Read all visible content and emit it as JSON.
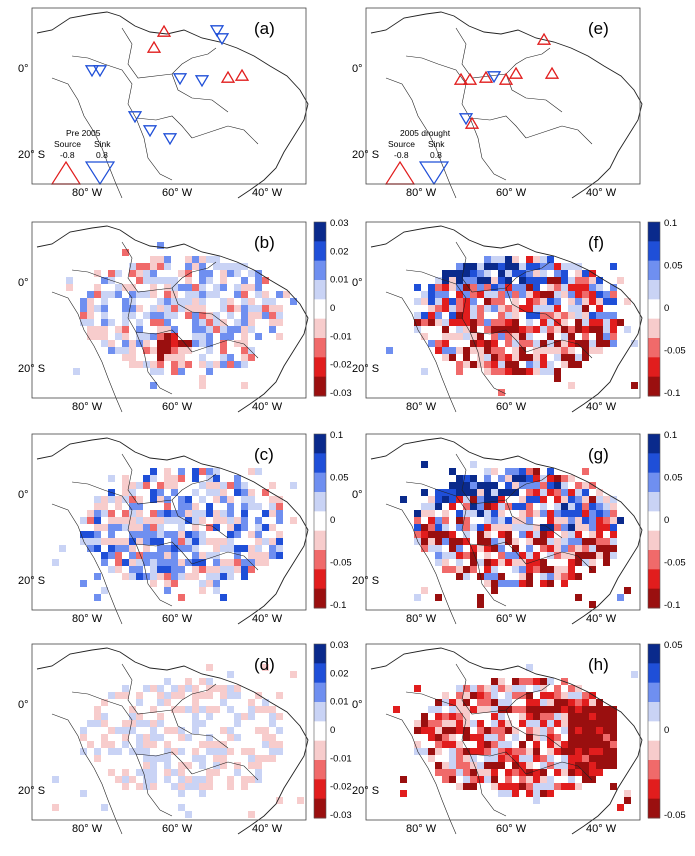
{
  "panels": [
    {
      "id": "a",
      "letter": "(a)",
      "type": "sites",
      "legend": {
        "title": "Pre 2005",
        "source_label": "Source",
        "sink_label": "Sink",
        "source_value": "-0.8",
        "sink_value": "0.8"
      }
    },
    {
      "id": "e",
      "letter": "(e)",
      "type": "sites",
      "legend": {
        "title": "2005 drought",
        "source_label": "Source",
        "sink_label": "Sink",
        "source_value": "-0.8",
        "sink_value": "0.8"
      }
    },
    {
      "id": "b",
      "letter": "(b)",
      "type": "grid",
      "colorbar": [
        "0.03",
        "0.02",
        "0.01",
        "0",
        "-0.01",
        "-0.02",
        "-0.03"
      ]
    },
    {
      "id": "f",
      "letter": "(f)",
      "type": "grid",
      "colorbar": [
        "0.1",
        "0.05",
        "0",
        "-0.05",
        "-0.1"
      ]
    },
    {
      "id": "c",
      "letter": "(c)",
      "type": "grid",
      "colorbar": [
        "0.1",
        "0.05",
        "0",
        "-0.05",
        "-0.1"
      ]
    },
    {
      "id": "g",
      "letter": "(g)",
      "type": "grid",
      "colorbar": [
        "0.1",
        "0.05",
        "0",
        "-0.05",
        "-0.1"
      ]
    },
    {
      "id": "d",
      "letter": "(d)",
      "type": "grid",
      "colorbar": [
        "0.03",
        "0.02",
        "0.01",
        "0",
        "-0.01",
        "-0.02",
        "-0.03"
      ]
    },
    {
      "id": "h",
      "letter": "(h)",
      "type": "grid",
      "colorbar": [
        "0.05",
        "0",
        "-0.05"
      ]
    }
  ],
  "axes": {
    "lat_labels": [
      "0°",
      "20° S"
    ],
    "lon_labels": [
      "80° W",
      "60° W",
      "40° W"
    ]
  },
  "colors": {
    "blue_dark": "#0a2a8c",
    "blue_mid": "#1f4fd8",
    "blue_light": "#6f8ff0",
    "blue_pale": "#c9d3f5",
    "red_dark": "#9a0f0f",
    "red_mid": "#e11d1d",
    "red_light": "#f06a6a",
    "red_pale": "#f7cccc",
    "neutral": "#ffffff",
    "outline": "#222222"
  }
}
